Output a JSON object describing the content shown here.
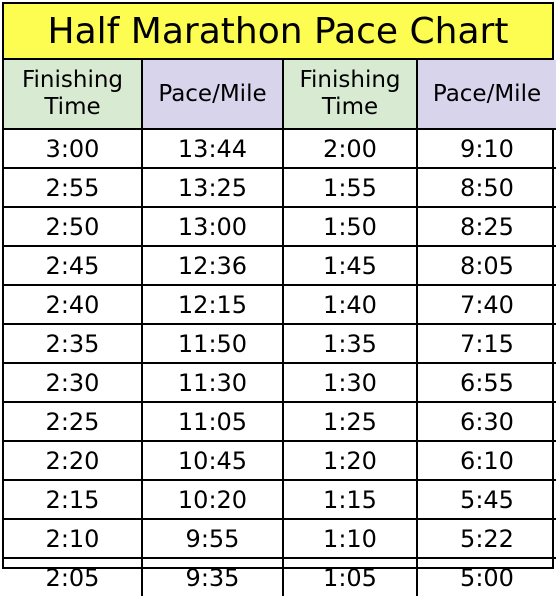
{
  "title": "Half Marathon Pace Chart",
  "headers": {
    "finishing_time_line1": "Finishing",
    "finishing_time_line2": "Time",
    "pace_mile": "Pace/Mile"
  },
  "rows": [
    {
      "time_a": "3:00",
      "pace_a": "13:44",
      "time_b": "2:00",
      "pace_b": "9:10"
    },
    {
      "time_a": "2:55",
      "pace_a": "13:25",
      "time_b": "1:55",
      "pace_b": "8:50"
    },
    {
      "time_a": "2:50",
      "pace_a": "13:00",
      "time_b": "1:50",
      "pace_b": "8:25"
    },
    {
      "time_a": "2:45",
      "pace_a": "12:36",
      "time_b": "1:45",
      "pace_b": "8:05"
    },
    {
      "time_a": "2:40",
      "pace_a": "12:15",
      "time_b": "1:40",
      "pace_b": "7:40"
    },
    {
      "time_a": "2:35",
      "pace_a": "11:50",
      "time_b": "1:35",
      "pace_b": "7:15"
    },
    {
      "time_a": "2:30",
      "pace_a": "11:30",
      "time_b": "1:30",
      "pace_b": "6:55"
    },
    {
      "time_a": "2:25",
      "pace_a": "11:05",
      "time_b": "1:25",
      "pace_b": "6:30"
    },
    {
      "time_a": "2:20",
      "pace_a": "10:45",
      "time_b": "1:20",
      "pace_b": "6:10"
    },
    {
      "time_a": "2:15",
      "pace_a": "10:20",
      "time_b": "1:15",
      "pace_b": "5:45"
    },
    {
      "time_a": "2:10",
      "pace_a": "9:55",
      "time_b": "1:10",
      "pace_b": "5:22"
    },
    {
      "time_a": "2:05",
      "pace_a": "9:35",
      "time_b": "1:05",
      "pace_b": "5:00"
    }
  ],
  "colors": {
    "title_bg": "#fdfc50",
    "time_header_bg": "#d8ead2",
    "pace_header_bg": "#d8d4ec",
    "border": "#000000"
  }
}
